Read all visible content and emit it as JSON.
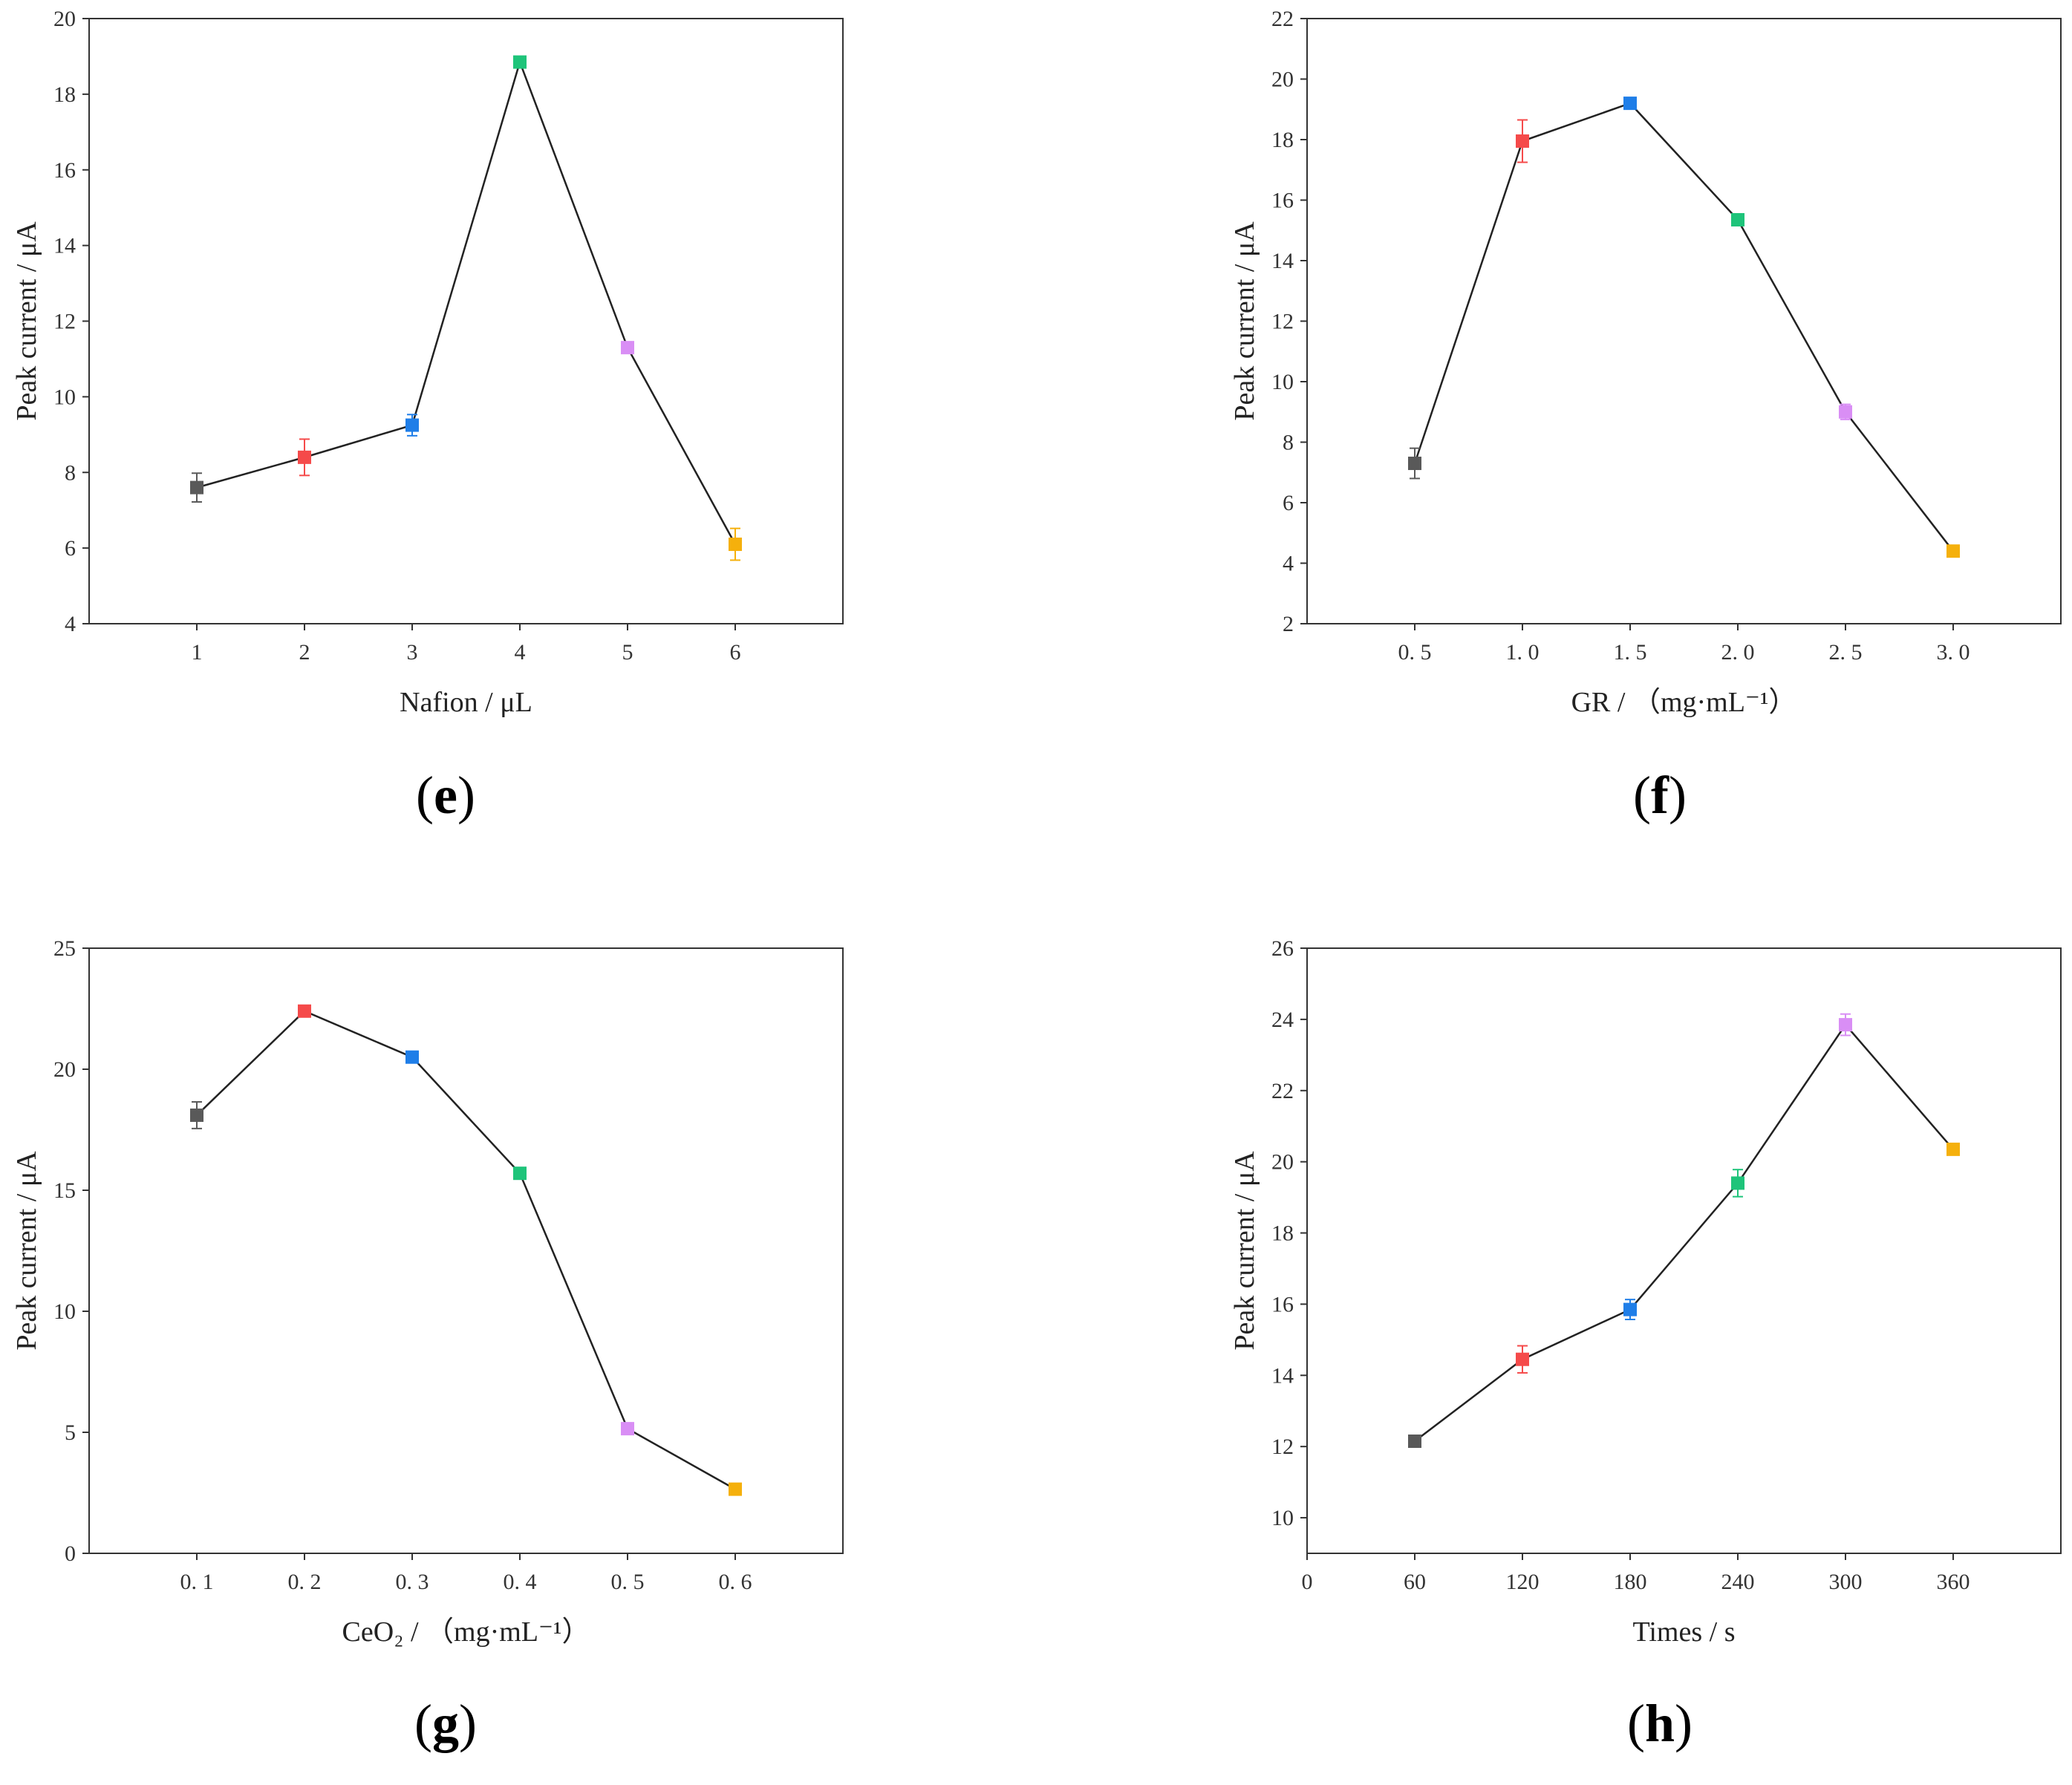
{
  "figure": {
    "marker_colors": [
      "#595959",
      "#f54a4a",
      "#1f7ee8",
      "#1ec47a",
      "#d98ef5",
      "#f5b00c"
    ],
    "line_color": "#222222"
  },
  "chart_data": [
    {
      "type": "line",
      "panel": "e",
      "caption": {
        "open": "(",
        "letter": "e",
        "close": ")"
      },
      "xlabel": "Nafion / μL",
      "ylabel": "Peak current / μA",
      "x_numeric": [
        1,
        2,
        3,
        4,
        5,
        6
      ],
      "x_tick_values": [
        1,
        2,
        3,
        4,
        5,
        6
      ],
      "x_tick_labels": [
        "1",
        "2",
        "3",
        "4",
        "5",
        "6"
      ],
      "xlim": [
        0,
        7
      ],
      "y": [
        7.6,
        8.4,
        9.25,
        18.85,
        11.3,
        6.1
      ],
      "y_err": [
        0.38,
        0.48,
        0.28,
        0.12,
        0.15,
        0.42
      ],
      "ylim": [
        4,
        20
      ],
      "y_ticks": [
        4,
        6,
        8,
        10,
        12,
        14,
        16,
        18,
        20
      ]
    },
    {
      "type": "line",
      "panel": "f",
      "caption": {
        "open": "(",
        "letter": "f",
        "close": ")"
      },
      "xlabel": "GR /  （mg·mL⁻¹）",
      "ylabel": "Peak current / μA",
      "x_numeric": [
        0.5,
        1.0,
        1.5,
        2.0,
        2.5,
        3.0
      ],
      "x_tick_values": [
        0.5,
        1.0,
        1.5,
        2.0,
        2.5,
        3.0
      ],
      "x_tick_labels": [
        "0. 5",
        "1. 0",
        "1. 5",
        "2. 0",
        "2. 5",
        "3. 0"
      ],
      "xlim": [
        0,
        3.5
      ],
      "y": [
        7.3,
        17.95,
        19.2,
        15.35,
        9.0,
        4.4
      ],
      "y_err": [
        0.5,
        0.7,
        0.12,
        0.1,
        0.25,
        0.1
      ],
      "ylim": [
        2,
        22
      ],
      "y_ticks": [
        2,
        4,
        6,
        8,
        10,
        12,
        14,
        16,
        18,
        20,
        22
      ]
    },
    {
      "type": "line",
      "panel": "g",
      "caption": {
        "open": "(",
        "letter": "g",
        "close": ")"
      },
      "xlabel": "CeO₂ /  （mg·mL⁻¹）",
      "ylabel": "Peak current / μA",
      "x_numeric": [
        0.1,
        0.2,
        0.3,
        0.4,
        0.5,
        0.6
      ],
      "x_tick_values": [
        0.1,
        0.2,
        0.3,
        0.4,
        0.5,
        0.6
      ],
      "x_tick_labels": [
        "0. 1",
        "0. 2",
        "0. 3",
        "0. 4",
        "0. 5",
        "0. 6"
      ],
      "xlim": [
        0,
        0.7
      ],
      "y": [
        18.1,
        22.4,
        20.5,
        15.7,
        5.15,
        2.65
      ],
      "y_err": [
        0.55,
        0.15,
        0.15,
        0.12,
        0.12,
        0.1
      ],
      "ylim": [
        0,
        25
      ],
      "y_ticks": [
        0,
        5,
        10,
        15,
        20,
        25
      ]
    },
    {
      "type": "line",
      "panel": "h",
      "caption": {
        "open": "(",
        "letter": "h",
        "close": ")"
      },
      "xlabel": "Times / s",
      "ylabel": "Peak current / μA",
      "x_numeric": [
        60,
        120,
        180,
        240,
        300,
        360
      ],
      "x_tick_values": [
        0,
        60,
        120,
        180,
        240,
        300,
        360
      ],
      "x_tick_labels": [
        "0",
        "60",
        "120",
        "180",
        "240",
        "300",
        "360"
      ],
      "xlim": [
        0,
        420
      ],
      "y": [
        12.15,
        14.45,
        15.85,
        19.4,
        23.85,
        20.35
      ],
      "y_err": [
        0.08,
        0.38,
        0.28,
        0.38,
        0.3,
        0.08
      ],
      "ylim": [
        9,
        26
      ],
      "y_ticks": [
        10,
        12,
        14,
        16,
        18,
        20,
        22,
        24,
        26
      ]
    }
  ]
}
